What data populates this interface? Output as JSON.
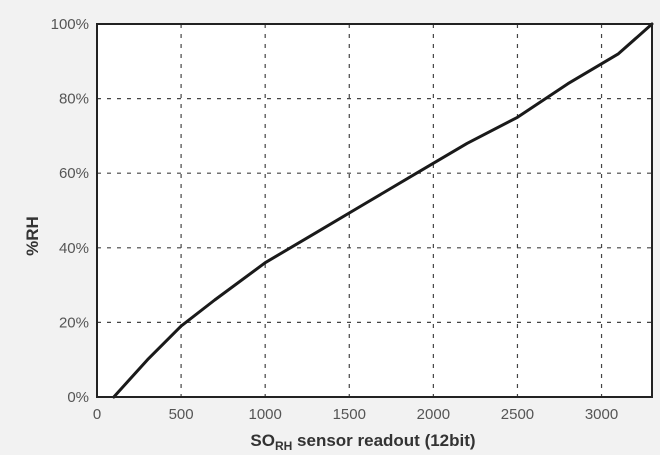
{
  "chart_data": {
    "type": "line",
    "xlabel": "SORH sensor readout (12bit)",
    "xlabel_main": "SO",
    "xlabel_sub": "RH",
    "xlabel_rest": " sensor readout (12bit)",
    "ylabel": "%RH",
    "xlim": [
      0,
      3300
    ],
    "ylim": [
      0,
      100
    ],
    "x_ticks": [
      0,
      500,
      1000,
      1500,
      2000,
      2500,
      3000
    ],
    "x_tick_labels": [
      "0",
      "500",
      "1000",
      "1500",
      "2000",
      "2500",
      "3000"
    ],
    "y_ticks": [
      0,
      20,
      40,
      60,
      80,
      100
    ],
    "y_tick_labels": [
      "0%",
      "20%",
      "40%",
      "60%",
      "80%",
      "100%"
    ],
    "grid": true,
    "series": [
      {
        "x": [
          100,
          300,
          500,
          700,
          1000,
          1300,
          1600,
          1900,
          2200,
          2500,
          2800,
          3100,
          3300
        ],
        "y": [
          0,
          10,
          19,
          26,
          36,
          44,
          52,
          60,
          68,
          75,
          84,
          92,
          100
        ]
      }
    ],
    "colors": {
      "line": "#1a1a1a",
      "grid": "#444444",
      "frame": "#222222",
      "background": "#ffffff"
    }
  }
}
